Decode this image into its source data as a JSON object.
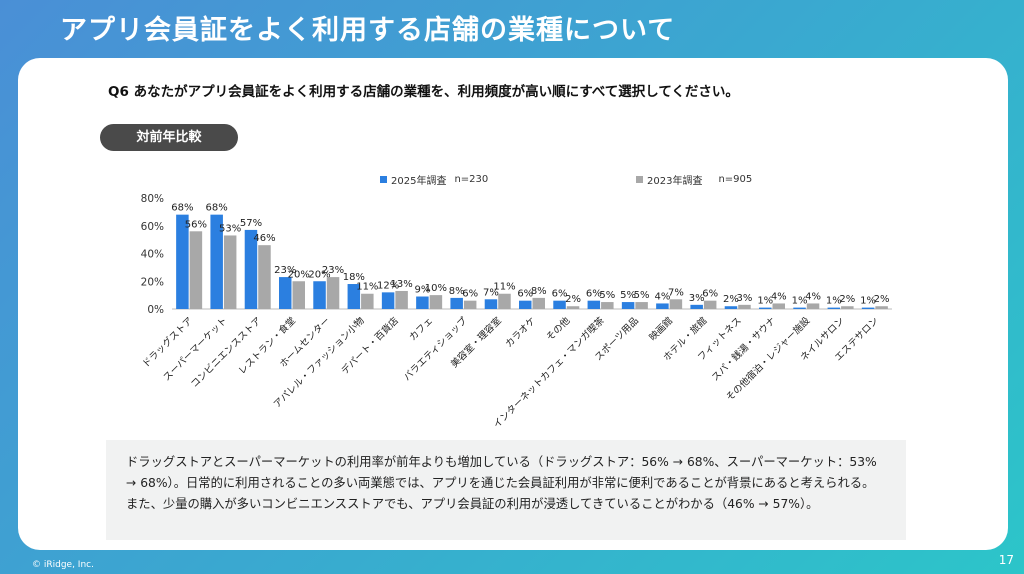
{
  "page": {
    "title": "アプリ会員証をよく利用する店舗の業種について",
    "question": "Q6 あなたがアプリ会員証をよく利用する店舗の業種を、利用頻度が高い順にすべて選択してください。",
    "badge": "対前年比較",
    "note": "ドラッグストアとスーパーマーケットの利用率が前年よりも増加している（ドラッグストア：56% → 68%、スーパーマーケット：53% → 68%）。日常的に利用されることの多い両業態では、アプリを通じた会員証利用が非常に便利であることが背景にあると考えられる。また、少量の購入が多いコンビニエンスストアでも、アプリ会員証の利用が浸透してきていることがわかる（46% → 57%）。",
    "copyright": "© iRidge, Inc.",
    "page_number": "17"
  },
  "colors": {
    "series_2025": "#2b7fe0",
    "series_2023": "#a8a8a8"
  },
  "chart_data": {
    "type": "bar",
    "ylim": [
      0,
      80
    ],
    "yticks": [
      "0%",
      "20%",
      "40%",
      "60%",
      "80%"
    ],
    "ytick_values": [
      0,
      20,
      40,
      60,
      80
    ],
    "legend_position": "top",
    "categories": [
      "ドラッグストア",
      "スーパーマーケット",
      "コンビニエンスストア",
      "レストラン・食堂",
      "ホームセンター",
      "アパレル・ファッション小物",
      "デパート・百貨店",
      "カフェ",
      "バラエティショップ",
      "美容室・理容室",
      "カラオケ",
      "その他",
      "インターネットカフェ・マンガ喫茶",
      "スポーツ用品",
      "映画館",
      "ホテル・旅館",
      "フィットネス",
      "スパ・銭湯・サウナ",
      "その他宿泊・レジャー施設",
      "ネイルサロン",
      "エステサロン"
    ],
    "series": [
      {
        "name": "2025年調査",
        "n_label": "n=230",
        "values": [
          68,
          68,
          57,
          23,
          20,
          18,
          12,
          9,
          8,
          7,
          6,
          6,
          6,
          5,
          4,
          3,
          2,
          1,
          1,
          1,
          1
        ],
        "labels": [
          "68%",
          "68%",
          "57%",
          "23%",
          "20%",
          "18%",
          "12%",
          "9%",
          "8%",
          "7%",
          "6%",
          "6%",
          "6%",
          "5%",
          "4%",
          "3%",
          "2%",
          "1%",
          "1%",
          "1%",
          "1%"
        ]
      },
      {
        "name": "2023年調査",
        "n_label": "n=905",
        "values": [
          56,
          53,
          46,
          20,
          23,
          11,
          13,
          10,
          6,
          11,
          8,
          2,
          5,
          5,
          7,
          6,
          3,
          4,
          4,
          2,
          2
        ],
        "labels": [
          "56%",
          "53%",
          "46%",
          "20%",
          "23%",
          "11%",
          "13%",
          "10%",
          "6%",
          "11%",
          "8%",
          "2%",
          "5%",
          "5%",
          "7%",
          "6%",
          "3%",
          "4%",
          "4%",
          "2%",
          "2%"
        ]
      }
    ]
  }
}
